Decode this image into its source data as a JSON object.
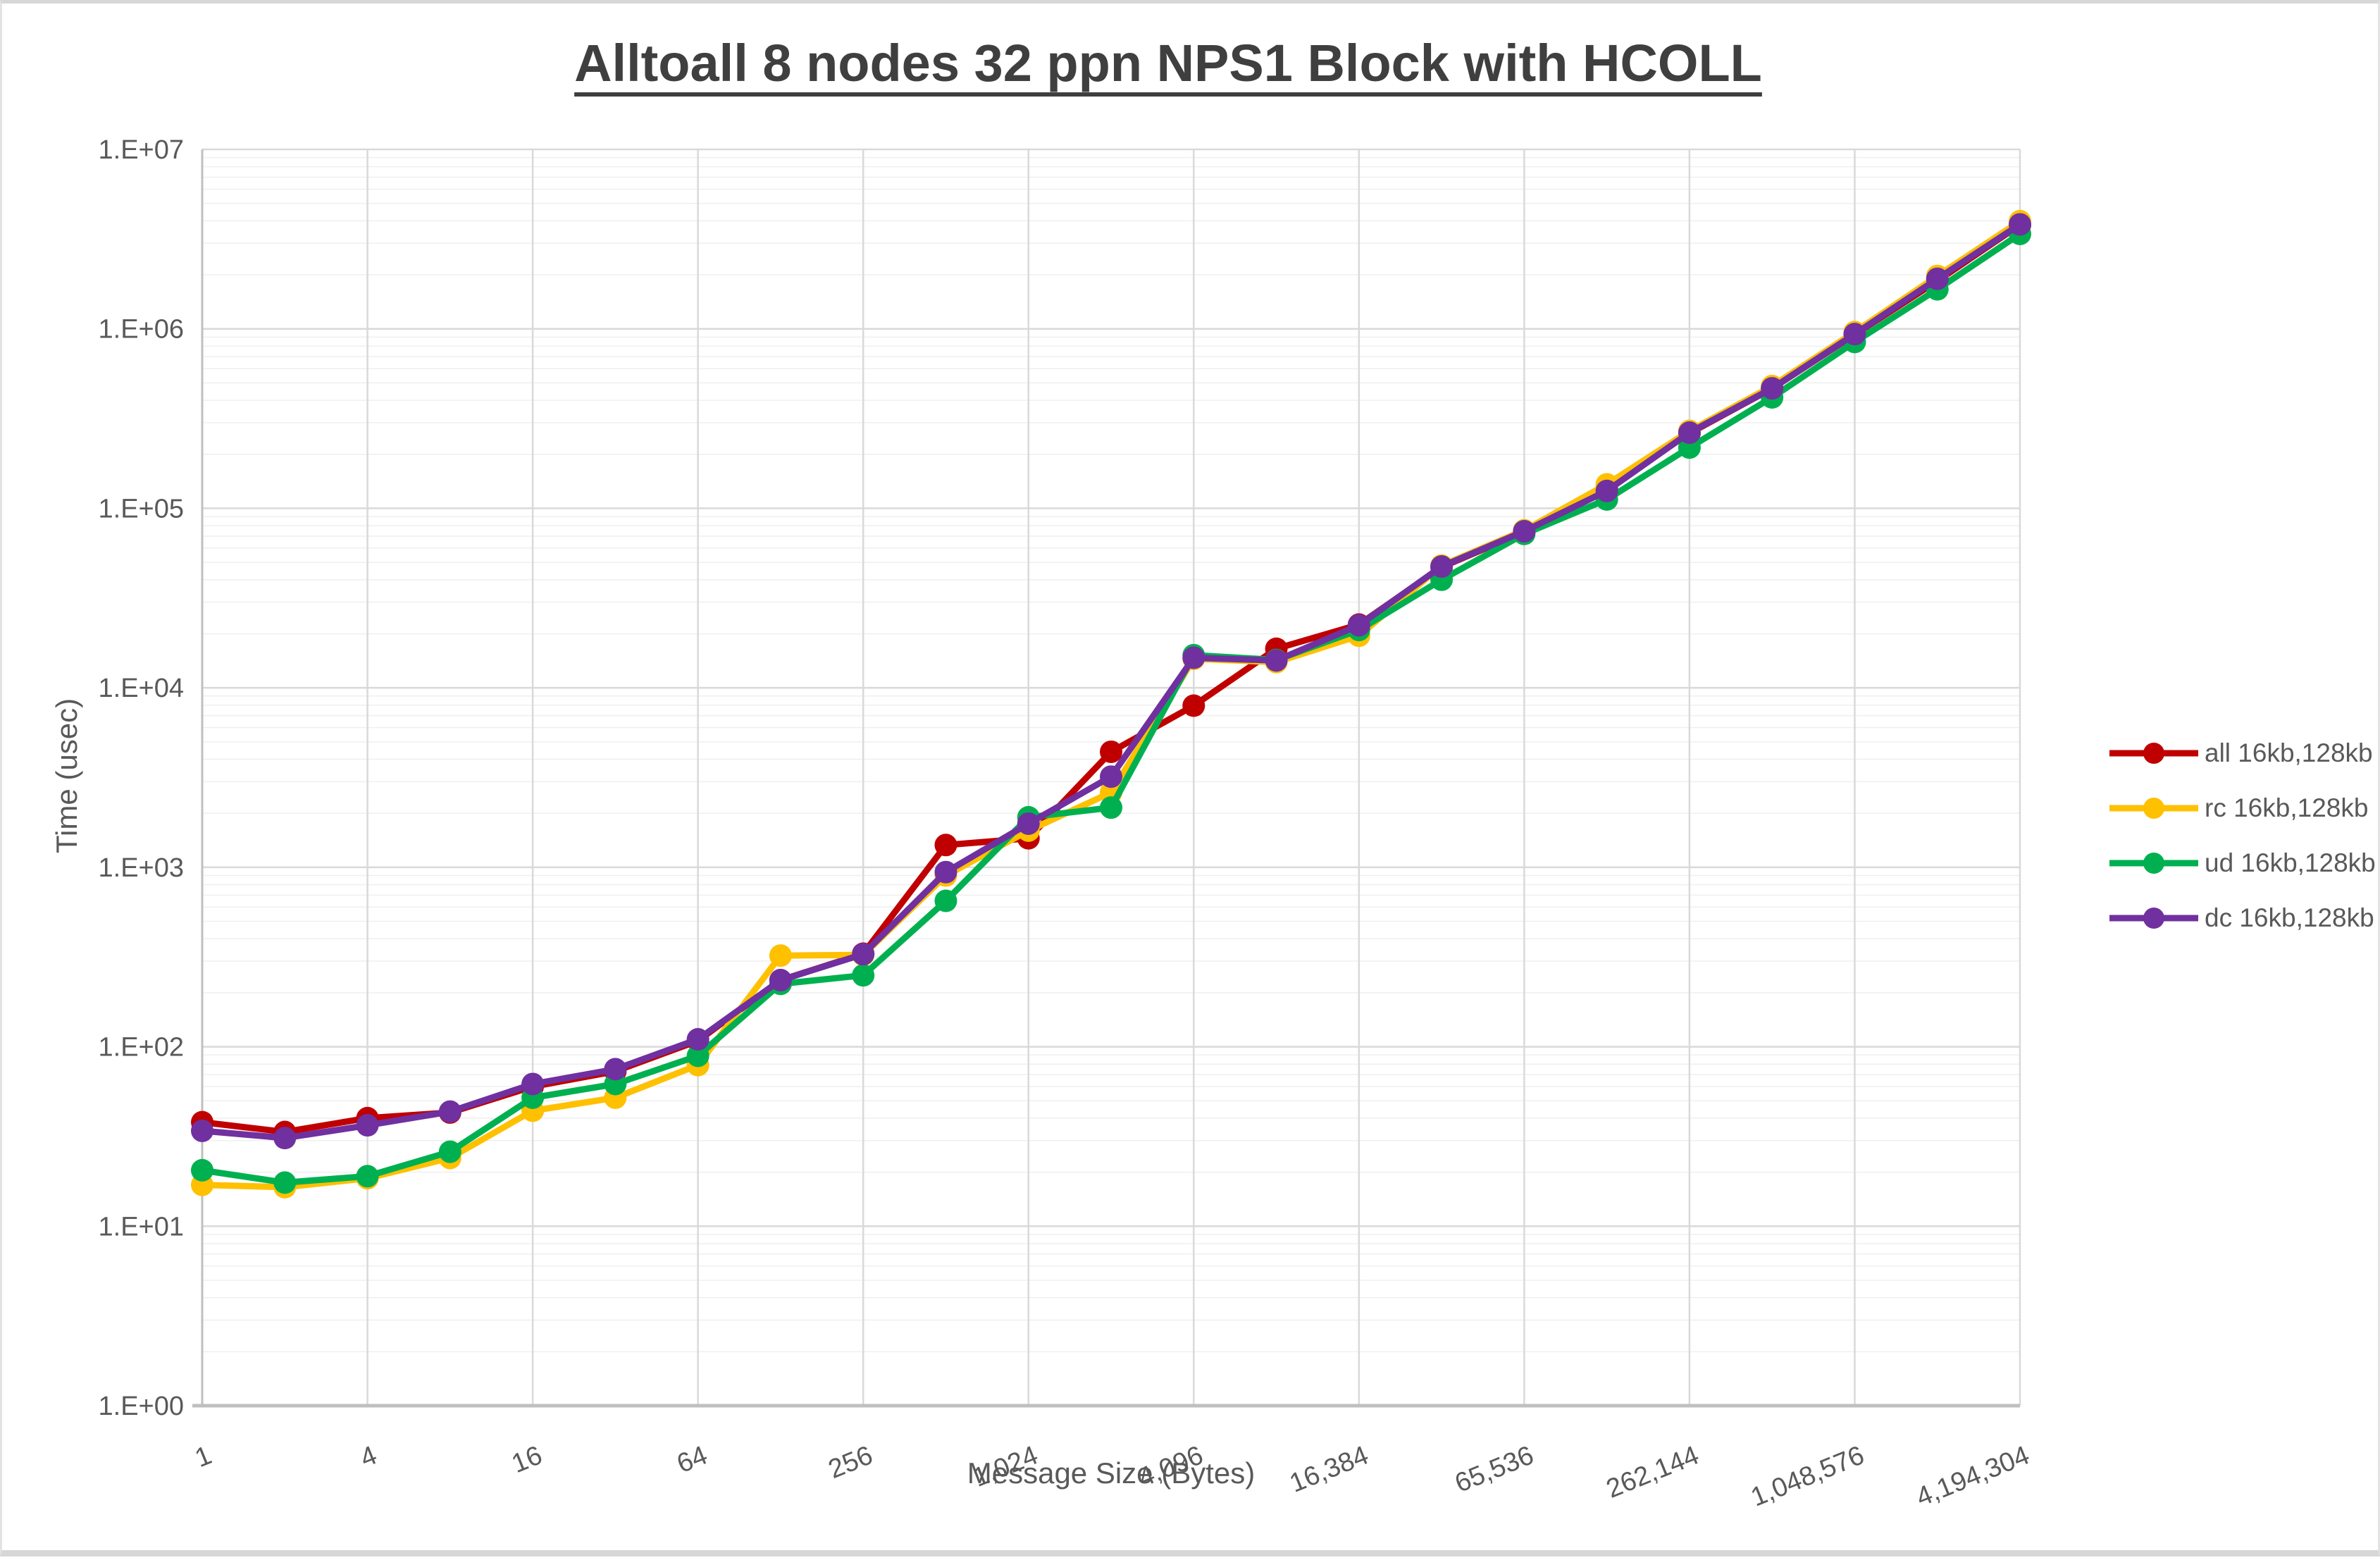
{
  "chart_data": {
    "type": "line",
    "title": "Alltoall 8 nodes 32 ppn NPS1 Block with HCOLL",
    "xlabel": "Message Size (Bytes)",
    "ylabel": "Time (usec)",
    "x_scale": "log2",
    "y_scale": "log10",
    "ylim": [
      1,
      10000000
    ],
    "grid": true,
    "legend_position": "right",
    "x": [
      1,
      2,
      4,
      8,
      16,
      32,
      64,
      128,
      256,
      512,
      1024,
      2048,
      4096,
      8192,
      16384,
      32768,
      65536,
      131072,
      262144,
      524288,
      1048576,
      2097152,
      4194304
    ],
    "x_ticks": [
      1,
      4,
      16,
      64,
      256,
      1024,
      4096,
      16384,
      65536,
      262144,
      1048576,
      4194304
    ],
    "x_tick_labels": [
      "1",
      "4",
      "16",
      "64",
      "256",
      "1,024",
      "4,096",
      "16,384",
      "65,536",
      "262,144",
      "1,048,576",
      "4,194,304"
    ],
    "y_tick_labels": [
      "1.E+00",
      "1.E+01",
      "1.E+02",
      "1.E+03",
      "1.E+04",
      "1.E+05",
      "1.E+06",
      "1.E+07"
    ],
    "series": [
      {
        "id": "all",
        "name": "all 16kb,128kb",
        "color": "#C00000",
        "values": [
          38,
          33.5,
          40,
          43,
          60,
          73,
          108,
          235,
          330,
          1330,
          1450,
          4400,
          7950,
          16500,
          22500,
          47000,
          74000,
          130000,
          262000,
          465000,
          930000,
          1850000,
          3800000
        ]
      },
      {
        "id": "rc",
        "name": "rc 16kb,128kb",
        "color": "#FFC000",
        "values": [
          17,
          16.5,
          18.5,
          24,
          44,
          52,
          79,
          322,
          325,
          900,
          1600,
          2610,
          14500,
          13900,
          19500,
          48000,
          75500,
          136000,
          270000,
          480000,
          960000,
          1970000,
          3980000
        ]
      },
      {
        "id": "ud",
        "name": "ud 16kb,128kb",
        "color": "#00B050",
        "values": [
          20.5,
          17.5,
          19,
          26,
          52,
          62,
          89,
          224,
          250,
          650,
          1900,
          2150,
          15200,
          14300,
          21000,
          40000,
          72000,
          112000,
          218000,
          415000,
          845000,
          1660000,
          3380000
        ]
      },
      {
        "id": "dc",
        "name": "dc 16kb,128kb",
        "color": "#7030A0",
        "values": [
          34,
          31,
          36.5,
          43.5,
          62,
          75,
          110,
          235,
          328,
          940,
          1750,
          3200,
          14700,
          14200,
          22300,
          47400,
          74500,
          125000,
          264000,
          466000,
          935000,
          1900000,
          3820000
        ]
      }
    ]
  }
}
